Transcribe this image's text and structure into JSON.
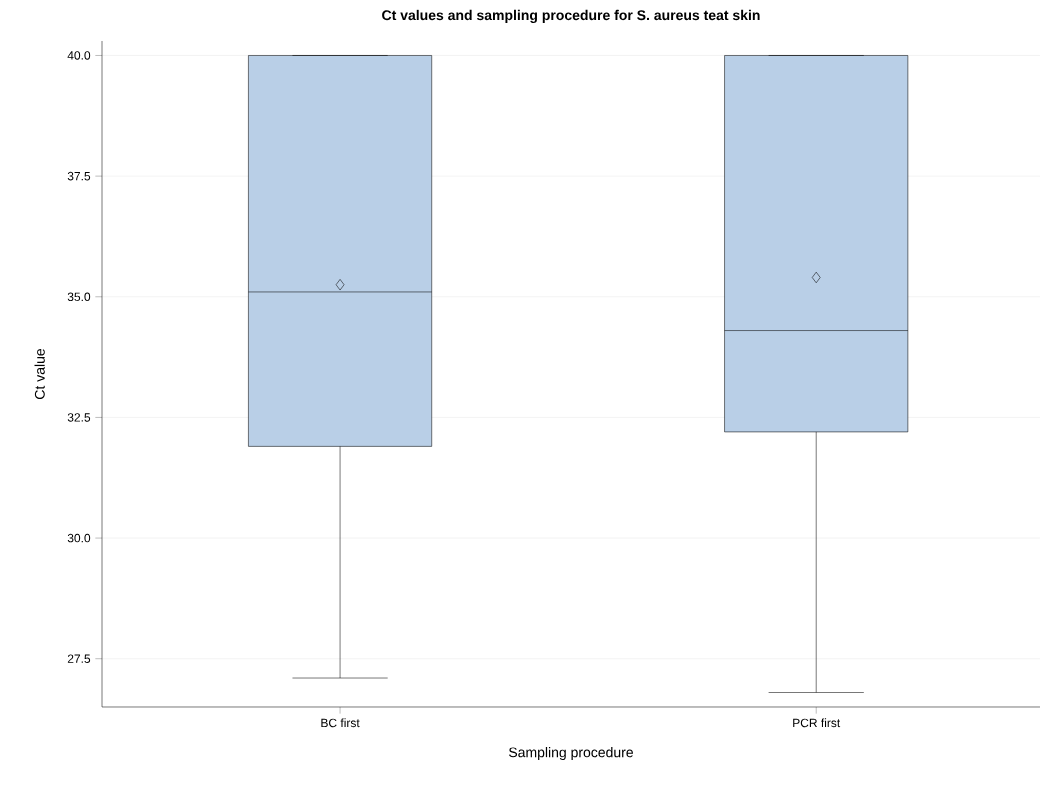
{
  "chart_data": {
    "type": "box",
    "title": "Ct values and sampling procedure for S. aureus teat skin",
    "xlabel": "Sampling procedure",
    "ylabel": "Ct value",
    "categories": [
      "BC first",
      "PCR first"
    ],
    "color": "#b9cfe7",
    "boxes": [
      {
        "low": 27.1,
        "q1": 31.9,
        "median": 35.1,
        "q3": 40.0,
        "high": 40.0,
        "mean": 35.25
      },
      {
        "low": 26.8,
        "q1": 32.2,
        "median": 34.3,
        "q3": 40.0,
        "high": 40.0,
        "mean": 35.4
      }
    ],
    "marker": "diamond",
    "ylim": [
      26.5,
      40.3
    ],
    "yticks": [
      {
        "value": 27.5,
        "label": "27.5"
      },
      {
        "value": 30,
        "label": "30.0"
      },
      {
        "value": 32.5,
        "label": "32.5"
      },
      {
        "value": 35,
        "label": "35.0"
      },
      {
        "value": 37.5,
        "label": "37.5"
      },
      {
        "value": 40,
        "label": "40.0"
      }
    ],
    "grid": "y"
  }
}
